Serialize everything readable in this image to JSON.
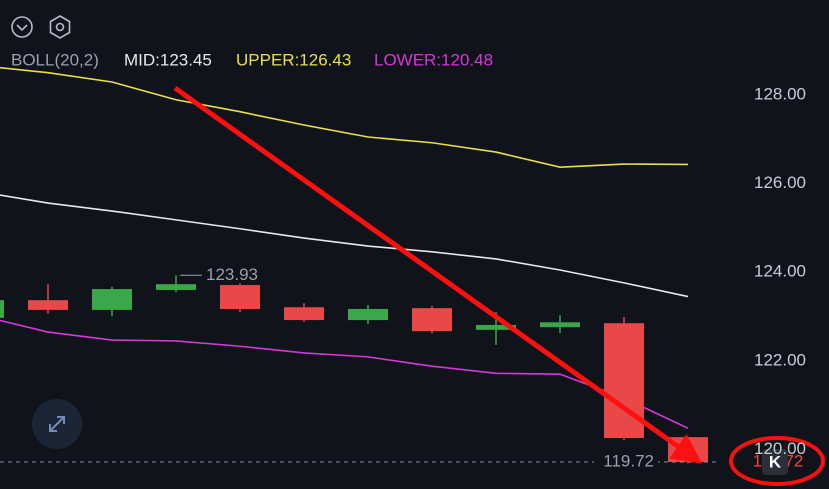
{
  "chart_data": {
    "type": "candlestick",
    "indicator": "BOLL(20,2)",
    "categories": [
      null,
      null,
      null,
      null,
      null,
      null,
      null,
      null,
      null,
      null,
      null,
      null
    ],
    "open": [
      122.97,
      123.37,
      123.15,
      123.6,
      123.71,
      123.21,
      122.92,
      123.19,
      122.7,
      122.76,
      122.85,
      120.28
    ],
    "high": [
      123.45,
      123.73,
      123.67,
      123.93,
      123.75,
      123.3,
      123.26,
      123.24,
      123.1,
      123.03,
      122.99,
      120.28
    ],
    "low": [
      122.9,
      123.06,
      123.01,
      123.55,
      123.1,
      122.88,
      122.83,
      122.62,
      122.36,
      122.63,
      120.21,
      119.69
    ],
    "close": [
      123.37,
      123.15,
      123.62,
      123.73,
      123.17,
      122.92,
      123.17,
      122.67,
      122.81,
      122.87,
      120.26,
      119.72
    ],
    "up_color": "#3aa84a",
    "down_color": "#e84848",
    "series": [
      {
        "name": "MID:123.45",
        "color": "#e8e8e8",
        "values": [
          125.8,
          125.56,
          125.38,
          125.18,
          124.98,
          124.77,
          124.59,
          124.46,
          124.3,
          124.05,
          123.76,
          123.45
        ]
      },
      {
        "name": "UPPER:126.43",
        "color": "#e6e04a",
        "values": [
          128.65,
          128.5,
          128.29,
          127.89,
          127.62,
          127.32,
          127.05,
          126.92,
          126.71,
          126.37,
          126.44,
          126.43
        ]
      },
      {
        "name": "LOWER:120.48",
        "color": "#d438d8",
        "values": [
          123.0,
          122.65,
          122.47,
          122.45,
          122.33,
          122.18,
          122.09,
          121.88,
          121.72,
          121.7,
          121.16,
          120.48
        ]
      }
    ],
    "high_label": {
      "text": "123.93",
      "index": 3
    },
    "last_price": 119.72,
    "ylim": [
      119.11,
      130.14
    ],
    "yticks": [
      {
        "value": 128,
        "label": "128.00"
      },
      {
        "value": 126,
        "label": "126.00"
      },
      {
        "value": 124,
        "label": "124.00"
      },
      {
        "value": 122,
        "label": "122.00"
      },
      {
        "value": 120,
        "label": "120.00"
      }
    ],
    "grid": false
  },
  "ui": {
    "collapse_button": "K"
  }
}
